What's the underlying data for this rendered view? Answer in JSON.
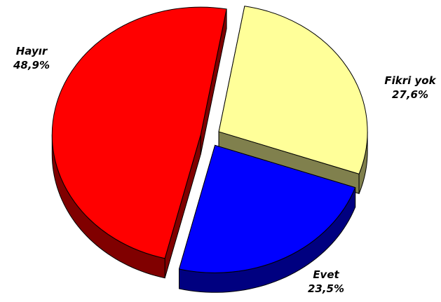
{
  "chart_data": {
    "type": "pie",
    "categories": [
      "Fikri yok",
      "Evet",
      "Hayır"
    ],
    "values": [
      27.6,
      23.5,
      48.9
    ],
    "value_labels": [
      "27,6%",
      "23,5%",
      "48,9%"
    ],
    "colors": [
      "#ffff99",
      "#0000ff",
      "#ff0000"
    ]
  }
}
